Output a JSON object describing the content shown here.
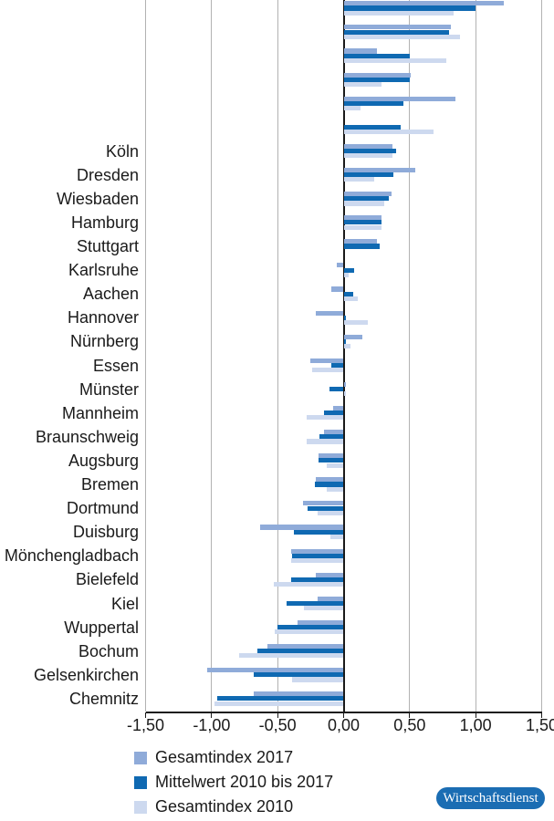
{
  "chart_data": {
    "type": "bar",
    "orientation": "horizontal",
    "categories": [
      "",
      "",
      "",
      "",
      "",
      "",
      "Köln",
      "Dresden",
      "Wiesbaden",
      "Hamburg",
      "Stuttgart",
      "Karlsruhe",
      "Aachen",
      "Hannover",
      "Nürnberg",
      "Essen",
      "Münster",
      "Mannheim",
      "Braunschweig",
      "Augsburg",
      "Bremen",
      "Dortmund",
      "Duisburg",
      "Mönchengladbach",
      "Bielefeld",
      "Kiel",
      "Wuppertal",
      "Bochum",
      "Gelsenkirchen",
      "Chemnitz"
    ],
    "series": [
      {
        "name": "Gesamtindex 2017",
        "color": "#8fabd9",
        "values": [
          1.21,
          0.81,
          0.25,
          0.51,
          0.85,
          0.0,
          0.37,
          0.54,
          0.36,
          0.29,
          0.25,
          -0.05,
          -0.09,
          -0.21,
          0.14,
          -0.25,
          0.02,
          -0.08,
          -0.15,
          -0.19,
          -0.21,
          -0.31,
          -0.63,
          -0.4,
          -0.21,
          -0.2,
          -0.35,
          -0.58,
          -1.03,
          -0.68
        ]
      },
      {
        "name": "Mittelwert 2010 bis 2017",
        "color": "#0f69b2",
        "values": [
          1.0,
          0.8,
          0.5,
          0.5,
          0.45,
          0.43,
          0.4,
          0.38,
          0.34,
          0.29,
          0.27,
          0.08,
          0.07,
          0.02,
          0.02,
          -0.09,
          -0.11,
          -0.15,
          -0.18,
          -0.19,
          -0.22,
          -0.27,
          -0.38,
          -0.39,
          -0.4,
          -0.43,
          -0.5,
          -0.65,
          -0.68,
          -0.96
        ]
      },
      {
        "name": "Gesamtindex 2010",
        "color": "#cdd9ef",
        "values": [
          0.83,
          0.88,
          0.78,
          0.29,
          0.13,
          0.68,
          0.37,
          0.23,
          0.31,
          0.29,
          0.0,
          0.04,
          0.11,
          0.18,
          0.05,
          -0.24,
          0.02,
          -0.28,
          -0.28,
          -0.13,
          -0.13,
          -0.2,
          -0.1,
          -0.4,
          -0.53,
          -0.3,
          -0.52,
          -0.79,
          -0.39,
          -0.98
        ]
      }
    ],
    "xlim": [
      -1.5,
      1.5
    ],
    "xticks": [
      -1.5,
      -1.0,
      -0.5,
      0.0,
      0.5,
      1.0,
      1.5
    ],
    "xtick_labels": [
      "-1,50",
      "-1,00",
      "-0,50",
      "0,00",
      "0,50",
      "1,00",
      "1,50"
    ],
    "grid": "vertical",
    "legend_position": "bottom-left"
  },
  "footer": {
    "badge_label": "Wirtschaftsdienst"
  },
  "colors": {
    "grid": "#b2b2b2",
    "axis": "#1a1a1a",
    "text": "#1a1a1a",
    "badge_background": "#1b6db3",
    "badge_text": "#ffffff"
  }
}
